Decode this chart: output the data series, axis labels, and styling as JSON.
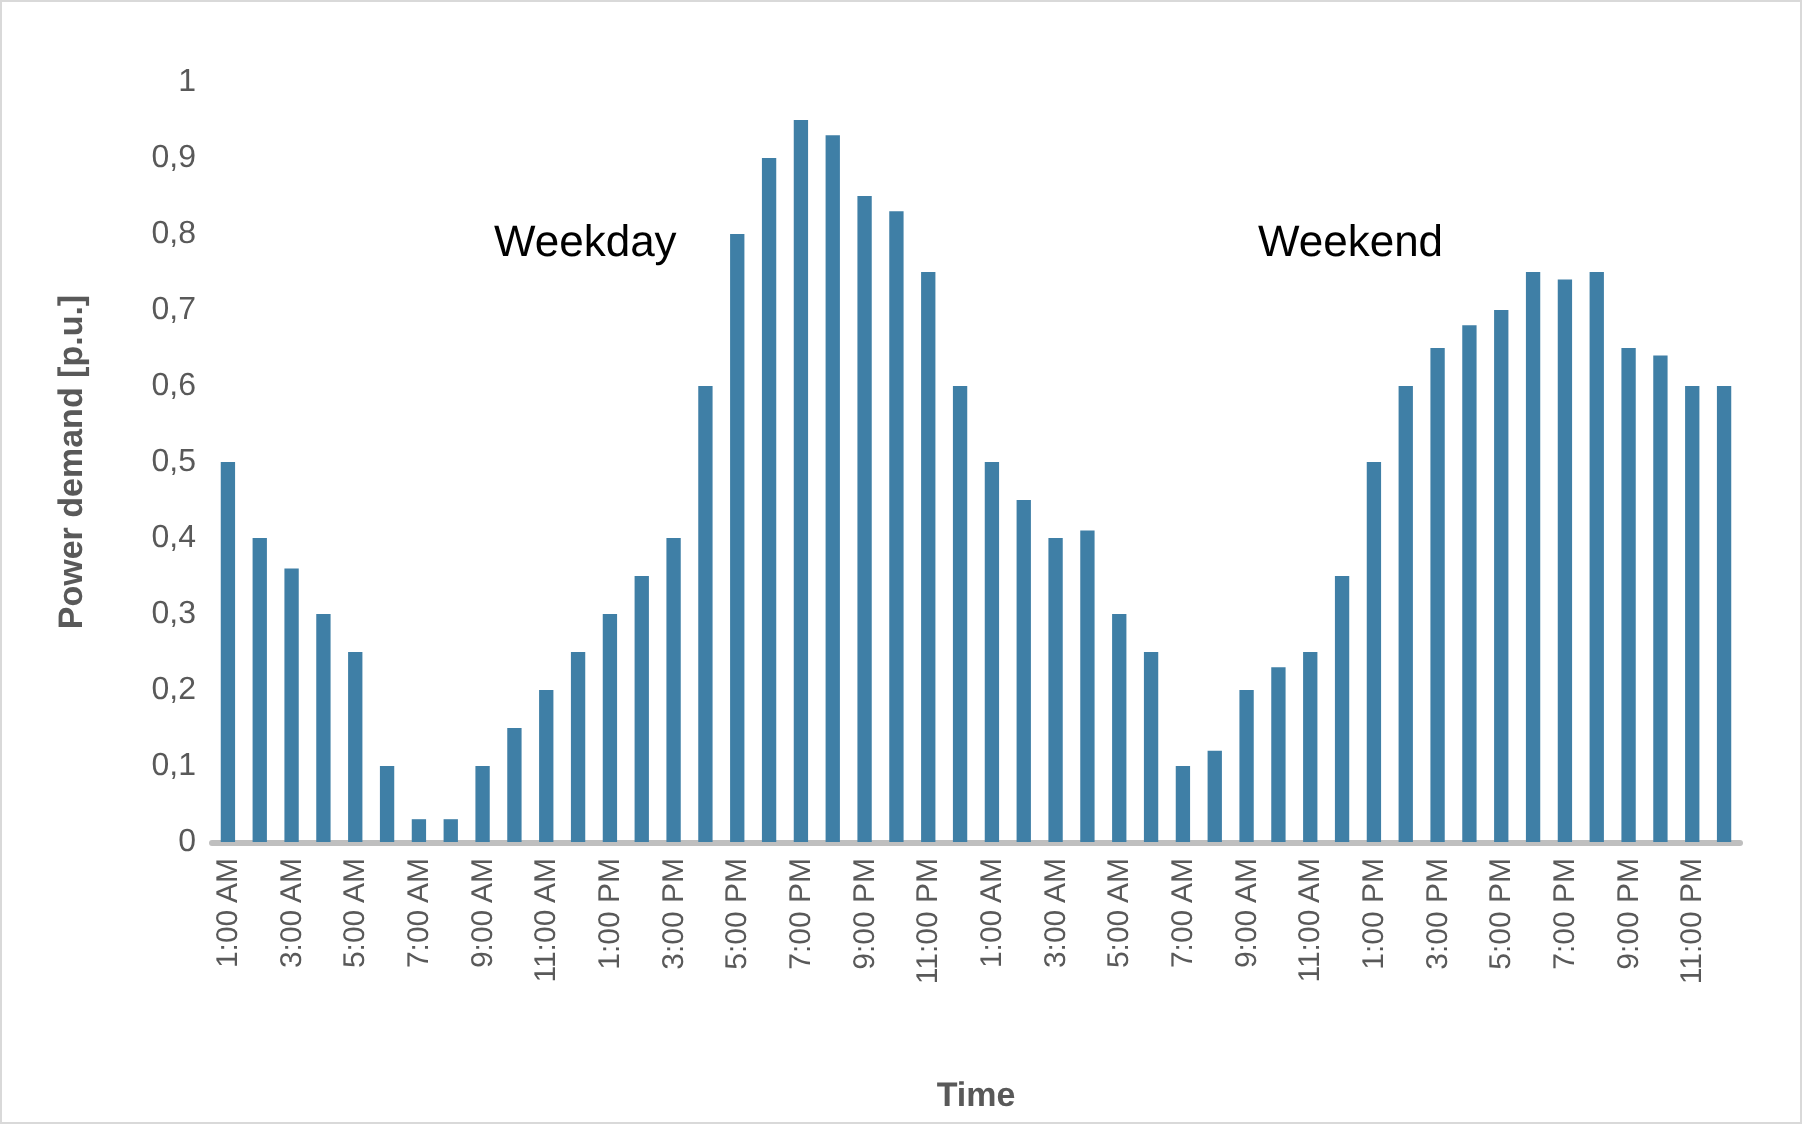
{
  "chart_data": {
    "type": "bar",
    "xlabel": "Time",
    "ylabel": "Power demand [p.u.]",
    "annotations": [
      "Weekday",
      "Weekend"
    ],
    "categories": [
      "1:00 AM",
      null,
      "3:00 AM",
      null,
      "5:00 AM",
      null,
      "7:00 AM",
      null,
      "9:00 AM",
      null,
      "11:00 AM",
      null,
      "1:00 PM",
      null,
      "3:00 PM",
      null,
      "5:00 PM",
      null,
      "7:00 PM",
      null,
      "9:00 PM",
      null,
      "11:00 PM",
      null,
      "1:00 AM",
      null,
      "3:00 AM",
      null,
      "5:00 AM",
      null,
      "7:00 AM",
      null,
      "9:00 AM",
      null,
      "11:00 AM",
      null,
      "1:00 PM",
      null,
      "3:00 PM",
      null,
      "5:00 PM",
      null,
      "7:00 PM",
      null,
      "9:00 PM",
      null,
      "11:00 PM",
      null
    ],
    "values": [
      0.5,
      0.4,
      0.36,
      0.3,
      0.25,
      0.1,
      0.03,
      0.03,
      0.1,
      0.15,
      0.2,
      0.25,
      0.3,
      0.35,
      0.4,
      0.6,
      0.8,
      0.9,
      0.95,
      0.93,
      0.85,
      0.83,
      0.75,
      0.6,
      0.5,
      0.45,
      0.4,
      0.41,
      0.3,
      0.25,
      0.1,
      0.12,
      0.2,
      0.23,
      0.25,
      0.35,
      0.5,
      0.6,
      0.65,
      0.68,
      0.7,
      0.75,
      0.74,
      0.75,
      0.65,
      0.64,
      0.6,
      0.6
    ],
    "color": "#3f7fa6",
    "ylim": [
      0,
      1
    ],
    "yticks": [
      0,
      {
        "value": 0.1,
        "label": "0,1"
      },
      {
        "value": 0.2,
        "label": "0,2"
      },
      {
        "value": 0.3,
        "label": "0,3"
      },
      {
        "value": 0.4,
        "label": "0,4"
      },
      {
        "value": 0.5,
        "label": "0,5"
      },
      {
        "value": 0.6,
        "label": "0,6"
      },
      {
        "value": 0.7,
        "label": "0,7"
      },
      {
        "value": 0.8,
        "label": "0,8"
      },
      {
        "value": 0.9,
        "label": "0,9"
      },
      1
    ]
  }
}
